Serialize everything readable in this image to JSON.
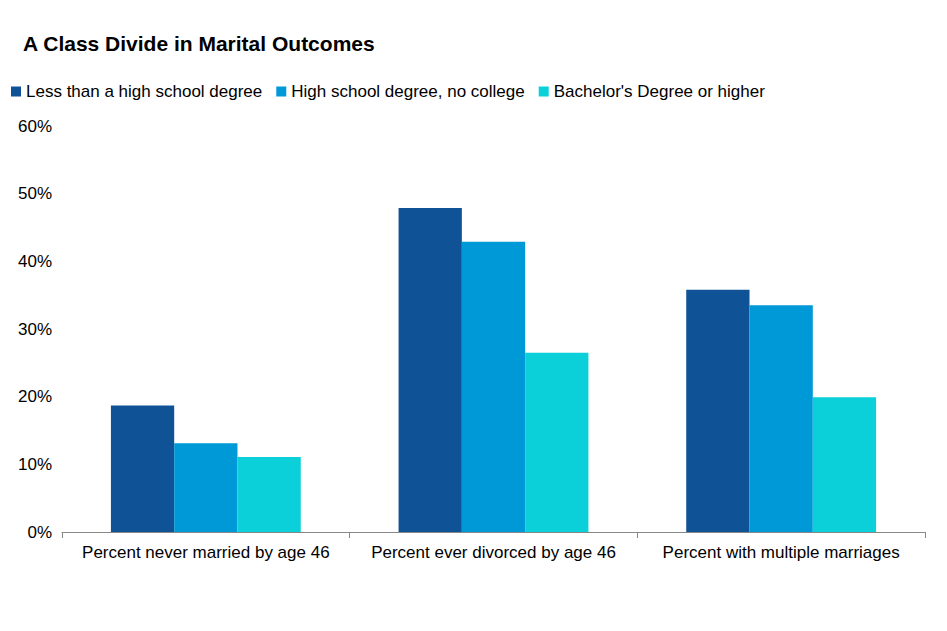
{
  "chart_data": {
    "type": "bar",
    "title": "A Class Divide in Marital Outcomes",
    "categories": [
      "Percent never married by age 46",
      "Percent ever divorced by age 46",
      "Percent with multiple marriages"
    ],
    "series": [
      {
        "name": "Less than a high school degree",
        "color": "#0f5396",
        "values": [
          18.7,
          47.9,
          35.8
        ]
      },
      {
        "name": "High school degree, no college",
        "color": "#0099d8",
        "values": [
          13.1,
          42.9,
          33.5
        ]
      },
      {
        "name": "Bachelor's Degree or higher",
        "color": "#0bd0d9",
        "values": [
          11.1,
          26.5,
          19.9
        ]
      }
    ],
    "ylim": [
      0,
      60
    ],
    "yticks": [
      {
        "value": 0,
        "label": "0%"
      },
      {
        "value": 10,
        "label": "10%"
      },
      {
        "value": 20,
        "label": "20%"
      },
      {
        "value": 30,
        "label": "30%"
      },
      {
        "value": 40,
        "label": "40%"
      },
      {
        "value": 50,
        "label": "50%"
      },
      {
        "value": 60,
        "label": "60%"
      }
    ],
    "grid": false,
    "legend": "top-left"
  }
}
